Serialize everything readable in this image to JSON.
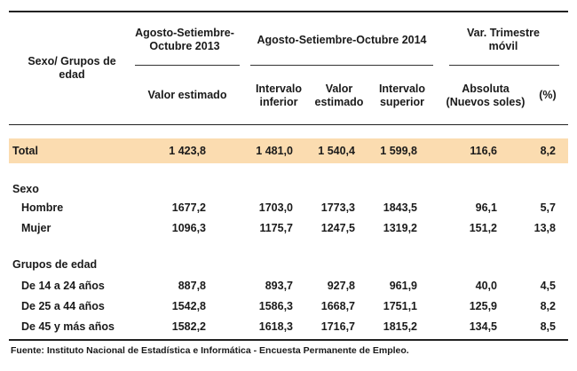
{
  "header": {
    "row_label_header": "Sexo/ Grupos de edad",
    "group_2013": "Agosto-Setiembre-Octubre 2013",
    "group_2014": "Agosto-Setiembre-Octubre 2014",
    "group_var": "Var. Trimestre móvil",
    "col_valor_2013": "Valor estimado",
    "col_inf": "Intervalo inferior",
    "col_valor_2014": "Valor estimado",
    "col_sup": "Intervalo superior",
    "col_abs": "Absoluta (Nuevos soles)",
    "col_pct": "(%)"
  },
  "total": {
    "label": "Total",
    "values": [
      "1 423,8",
      "1 481,0",
      "1 540,4",
      "1 599,8",
      "116,6",
      "8,2"
    ]
  },
  "sections": [
    {
      "title": "Sexo",
      "rows": [
        {
          "label": "Hombre",
          "values": [
            "1677,2",
            "1703,0",
            "1773,3",
            "1843,5",
            "96,1",
            "5,7"
          ]
        },
        {
          "label": "Mujer",
          "values": [
            "1096,3",
            "1175,7",
            "1247,5",
            "1319,2",
            "151,2",
            "13,8"
          ]
        }
      ]
    },
    {
      "title": "Grupos de edad",
      "rows": [
        {
          "label": "De 14 a 24 años",
          "values": [
            "887,8",
            "893,7",
            "927,8",
            "961,9",
            "40,0",
            "4,5"
          ]
        },
        {
          "label": "De 25 a 44 años",
          "values": [
            "1542,8",
            "1586,3",
            "1668,7",
            "1751,1",
            "125,9",
            "8,2"
          ]
        },
        {
          "label": "De 45 y más años",
          "values": [
            "1582,2",
            "1618,3",
            "1716,7",
            "1815,2",
            "134,5",
            "8,5"
          ]
        }
      ]
    }
  ],
  "footer": "Fuente: Instituto Nacional de Estadística e Informática - Encuesta Permanente de Empleo."
}
